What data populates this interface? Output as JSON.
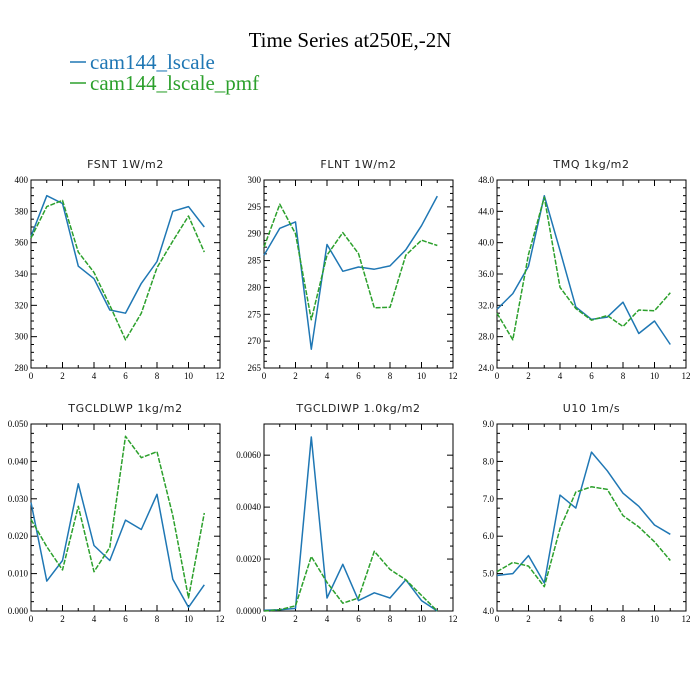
{
  "title": "Time Series at250E,-2N",
  "legend": [
    {
      "label": "cam144_lscale",
      "color": "#1f77b4"
    },
    {
      "label": "cam144_lscale_pmf",
      "color": "#2ca02c"
    }
  ],
  "chart_data": [
    {
      "type": "line",
      "title": "FSNT  1W/m2",
      "xlim": [
        0,
        12
      ],
      "ylim": [
        280,
        400
      ],
      "xticks": [
        "0",
        "2",
        "4",
        "6",
        "8",
        "10",
        "12"
      ],
      "yticks": [
        "280",
        "300",
        "320",
        "340",
        "360",
        "380",
        "400"
      ],
      "x": [
        0,
        1,
        2,
        3,
        4,
        5,
        6,
        7,
        8,
        9,
        10,
        11
      ],
      "series": [
        {
          "name": "cam144_lscale",
          "color": "#1f77b4",
          "dashed": false,
          "values": [
            364,
            390,
            385,
            345,
            337,
            317,
            315,
            334,
            348,
            380,
            383,
            370
          ]
        },
        {
          "name": "cam144_lscale_pmf",
          "color": "#2ca02c",
          "dashed": true,
          "values": [
            363,
            383,
            387,
            354,
            341,
            320,
            298,
            315,
            344,
            361,
            377,
            354
          ]
        }
      ]
    },
    {
      "type": "line",
      "title": "FLNT  1W/m2",
      "xlim": [
        0,
        12
      ],
      "ylim": [
        265,
        300
      ],
      "xticks": [
        "0",
        "2",
        "4",
        "6",
        "8",
        "10",
        "12"
      ],
      "yticks": [
        "265",
        "270",
        "275",
        "280",
        "285",
        "290",
        "295",
        "300"
      ],
      "x": [
        0,
        1,
        2,
        3,
        4,
        5,
        6,
        7,
        8,
        9,
        10,
        11
      ],
      "series": [
        {
          "name": "cam144_lscale",
          "color": "#1f77b4",
          "dashed": false,
          "values": [
            286,
            291,
            292.2,
            268.5,
            288,
            283,
            283.8,
            283.4,
            284,
            287,
            291.5,
            297
          ]
        },
        {
          "name": "cam144_lscale_pmf",
          "color": "#2ca02c",
          "dashed": true,
          "values": [
            287.5,
            295.5,
            290,
            274,
            286,
            290.2,
            286.3,
            276.2,
            276.3,
            286,
            288.8,
            287.8
          ]
        }
      ]
    },
    {
      "type": "line",
      "title": "TMQ  1kg/m2",
      "xlim": [
        0,
        12
      ],
      "ylim": [
        24,
        48
      ],
      "xticks": [
        "0",
        "2",
        "4",
        "6",
        "8",
        "10",
        "12"
      ],
      "yticks": [
        "24.0",
        "28.0",
        "32.0",
        "36.0",
        "40.0",
        "44.0",
        "48.0"
      ],
      "x": [
        0,
        1,
        2,
        3,
        4,
        5,
        6,
        7,
        8,
        9,
        10,
        11
      ],
      "series": [
        {
          "name": "cam144_lscale",
          "color": "#1f77b4",
          "dashed": false,
          "values": [
            31.5,
            33.5,
            37,
            46,
            39,
            31.8,
            30.2,
            30.5,
            32.4,
            28.4,
            30,
            27
          ]
        },
        {
          "name": "cam144_lscale_pmf",
          "color": "#2ca02c",
          "dashed": true,
          "values": [
            31,
            27.6,
            38.5,
            45.8,
            34.3,
            31.6,
            30.1,
            30.7,
            29.3,
            31.4,
            31.3,
            33.6
          ]
        }
      ]
    },
    {
      "type": "line",
      "title": "TGCLDLWP  1kg/m2",
      "xlim": [
        0,
        12
      ],
      "ylim": [
        0,
        0.05
      ],
      "xticks": [
        "0",
        "2",
        "4",
        "6",
        "8",
        "10",
        "12"
      ],
      "yticks": [
        "0.000",
        "0.010",
        "0.020",
        "0.030",
        "0.040",
        "0.050"
      ],
      "x": [
        0,
        1,
        2,
        3,
        4,
        5,
        6,
        7,
        8,
        9,
        10,
        11
      ],
      "series": [
        {
          "name": "cam144_lscale",
          "color": "#1f77b4",
          "dashed": false,
          "values": [
            0.029,
            0.008,
            0.0135,
            0.034,
            0.0175,
            0.0135,
            0.0243,
            0.0218,
            0.0312,
            0.0085,
            0.001,
            0.007
          ]
        },
        {
          "name": "cam144_lscale_pmf",
          "color": "#2ca02c",
          "dashed": true,
          "values": [
            0.0245,
            0.0172,
            0.011,
            0.028,
            0.0105,
            0.017,
            0.0467,
            0.041,
            0.0426,
            0.0255,
            0.0035,
            0.0262
          ]
        }
      ]
    },
    {
      "type": "line",
      "title": "TGCLDIWP  1.0kg/m2",
      "xlim": [
        0,
        12
      ],
      "ylim": [
        0,
        0.0072
      ],
      "xticks": [
        "0",
        "2",
        "4",
        "6",
        "8",
        "10",
        "12"
      ],
      "yticks": [
        "0.0000",
        "0.0020",
        "0.0040",
        "0.0060"
      ],
      "x": [
        0,
        1,
        2,
        3,
        4,
        5,
        6,
        7,
        8,
        9,
        10,
        11
      ],
      "series": [
        {
          "name": "cam144_lscale",
          "color": "#1f77b4",
          "dashed": false,
          "values": [
            3e-05,
            5e-05,
            0.0001,
            0.0067,
            0.0005,
            0.0018,
            0.0004,
            0.0007,
            0.0005,
            0.0012,
            0.0004,
            0.0
          ]
        },
        {
          "name": "cam144_lscale_pmf",
          "color": "#2ca02c",
          "dashed": true,
          "values": [
            0.0,
            5e-05,
            0.0002,
            0.0021,
            0.0011,
            0.0003,
            0.0005,
            0.0023,
            0.0016,
            0.0012,
            0.0006,
            0.0
          ]
        }
      ]
    },
    {
      "type": "line",
      "title": "U10  1m/s",
      "xlim": [
        0,
        12
      ],
      "ylim": [
        4,
        9
      ],
      "xticks": [
        "0",
        "2",
        "4",
        "6",
        "8",
        "10",
        "12"
      ],
      "yticks": [
        "4.0",
        "5.0",
        "6.0",
        "7.0",
        "8.0",
        "9.0"
      ],
      "x": [
        0,
        1,
        2,
        3,
        4,
        5,
        6,
        7,
        8,
        9,
        10,
        11
      ],
      "series": [
        {
          "name": "cam144_lscale",
          "color": "#1f77b4",
          "dashed": false,
          "values": [
            4.95,
            5,
            5.48,
            4.75,
            7.1,
            6.75,
            8.25,
            7.75,
            7.15,
            6.8,
            6.3,
            6.05
          ]
        },
        {
          "name": "cam144_lscale_pmf",
          "color": "#2ca02c",
          "dashed": true,
          "values": [
            5.05,
            5.3,
            5.2,
            4.65,
            6.2,
            7.18,
            7.32,
            7.25,
            6.55,
            6.25,
            5.85,
            5.35
          ]
        }
      ]
    }
  ]
}
